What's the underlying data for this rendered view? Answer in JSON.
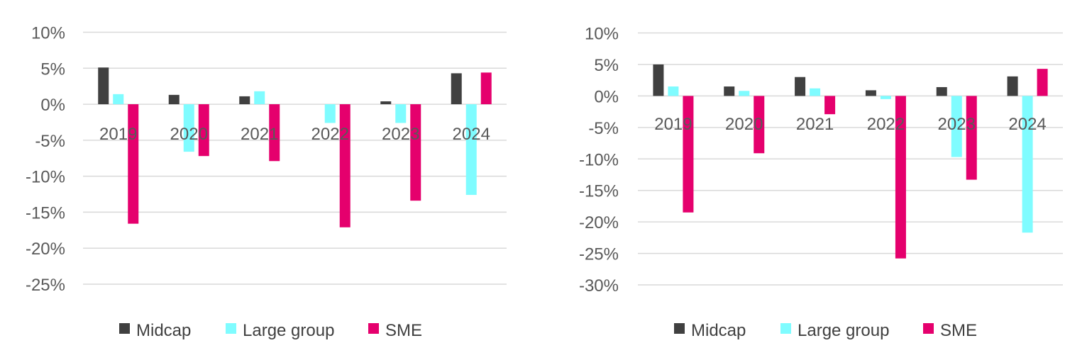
{
  "colors": {
    "midcap": "#404040",
    "large_group": "#7ffcff",
    "sme": "#e5006d",
    "grid": "#d9d9d9",
    "text": "#595959"
  },
  "chart_data": [
    {
      "type": "bar",
      "title": "",
      "xlabel": "",
      "ylabel": "",
      "categories": [
        "2019",
        "2020",
        "2021",
        "2022",
        "2023",
        "2024"
      ],
      "y_ticks": [
        "10%",
        "5%",
        "0%",
        "-5%",
        "-10%",
        "-15%",
        "-20%",
        "-25%"
      ],
      "ylim": [
        -25,
        10
      ],
      "grid": true,
      "legend": "bottom",
      "series": [
        {
          "name": "Midcap",
          "color_key": "midcap",
          "values": [
            5.1,
            1.3,
            1.1,
            0.0,
            0.4,
            4.3
          ]
        },
        {
          "name": "Large group",
          "color_key": "large_group",
          "values": [
            1.4,
            -6.6,
            1.8,
            -2.6,
            -2.6,
            -12.6
          ]
        },
        {
          "name": "SME",
          "color_key": "sme",
          "values": [
            -16.6,
            -7.2,
            -7.9,
            -17.1,
            -13.4,
            4.4
          ]
        }
      ]
    },
    {
      "type": "bar",
      "title": "",
      "xlabel": "",
      "ylabel": "",
      "categories": [
        "2019",
        "2020",
        "2021",
        "2022",
        "2023",
        "2024"
      ],
      "y_ticks": [
        "10%",
        "5%",
        "0%",
        "-5%",
        "-10%",
        "-15%",
        "-20%",
        "-25%",
        "-30%"
      ],
      "ylim": [
        -30,
        10
      ],
      "grid": true,
      "legend": "bottom",
      "series": [
        {
          "name": "Midcap",
          "color_key": "midcap",
          "values": [
            5.0,
            1.5,
            3.0,
            0.9,
            1.4,
            3.1
          ]
        },
        {
          "name": "Large group",
          "color_key": "large_group",
          "values": [
            1.5,
            0.8,
            1.2,
            -0.5,
            -9.7,
            -21.7
          ]
        },
        {
          "name": "SME",
          "color_key": "sme",
          "values": [
            -18.5,
            -9.1,
            -2.9,
            -25.8,
            -13.3,
            4.3
          ]
        }
      ]
    }
  ]
}
